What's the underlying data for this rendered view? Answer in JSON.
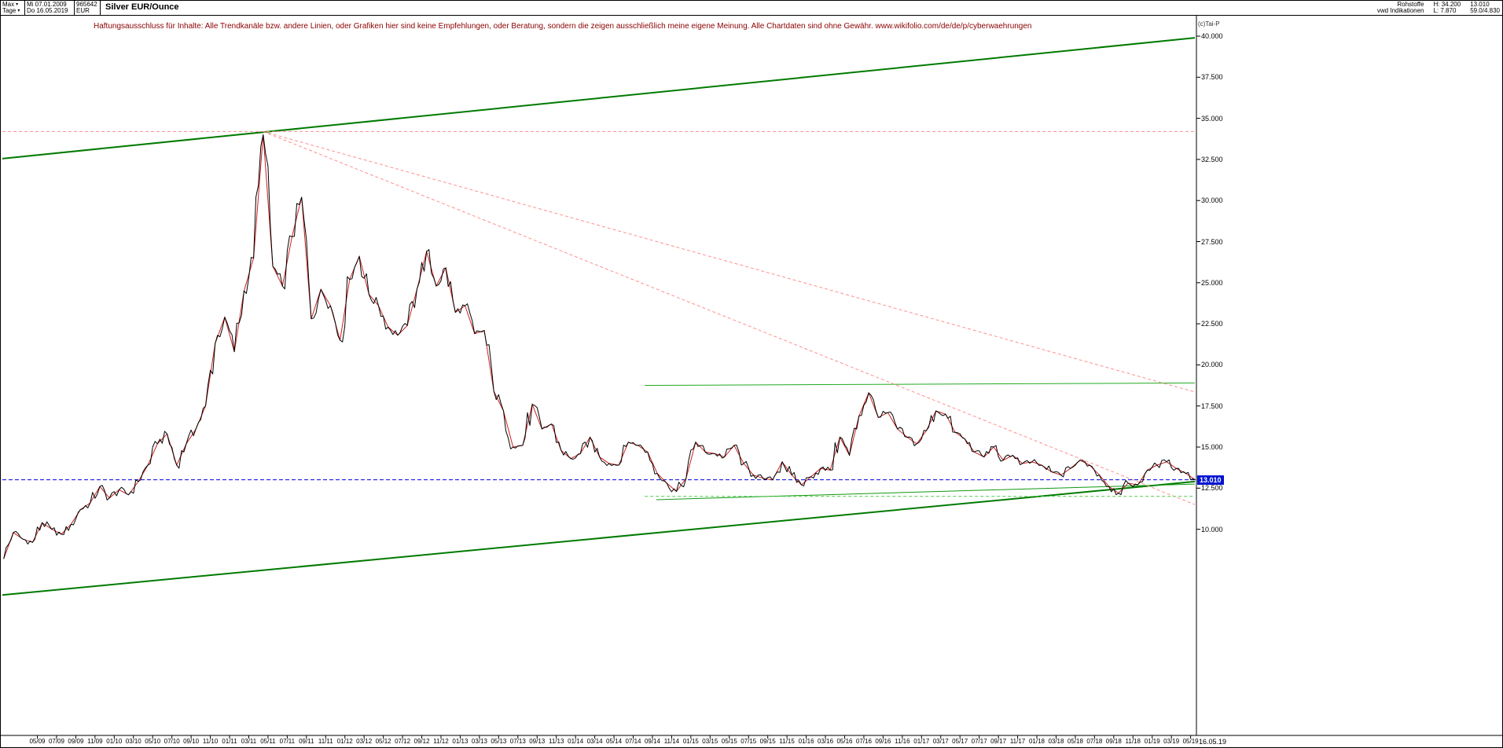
{
  "header": {
    "range_selector": "Max",
    "period_selector": "Tage",
    "start_date": "Mi 07.01.2009",
    "end_date": "Do 16.05.2019",
    "instrument_id": "965642",
    "currency": "EUR",
    "title": "Silver EUR/Ounce",
    "category": "Rohstoffe",
    "subcategory": "vwd Indikationen",
    "high_label": "H: 34.200",
    "low_label": "L: 7.870",
    "last_price": "13.010",
    "range_info": "59.0/4.830",
    "copyright": "(c)Tai-P"
  },
  "disclaimer": "Haftungsausschluss für Inhalte: Alle Trendkanäle bzw. andere Linien, oder Grafiken hier sind keine Empfehlungen, oder Beratung, sondern die zeigen ausschließlich meine eigene Meinung. Alle Chartdaten sind ohne Gewähr.  www.wikifolio.com/de/de/p/cyberwaehrungen",
  "chart_data": {
    "type": "line",
    "title": "Silver EUR/Ounce",
    "currency": "EUR",
    "x_range": [
      "2009-01-07",
      "2019-05-16"
    ],
    "ylim": [
      -2.5,
      40
    ],
    "grid": false,
    "high": 34.2,
    "low": 7.87,
    "current_price": 13.01,
    "price_tag": "13.010",
    "x_end_label": "16.05.19",
    "line_color": "#000000",
    "overlay_color": "#cc2020",
    "y_ticks": [
      {
        "label": "40.000",
        "value": 40.0
      },
      {
        "label": "37.500",
        "value": 37.5
      },
      {
        "label": "35.000",
        "value": 35.0
      },
      {
        "label": "32.500",
        "value": 32.5
      },
      {
        "label": "30.000",
        "value": 30.0
      },
      {
        "label": "27.500",
        "value": 27.5
      },
      {
        "label": "25.000",
        "value": 25.0
      },
      {
        "label": "22.500",
        "value": 22.5
      },
      {
        "label": "20.000",
        "value": 20.0
      },
      {
        "label": "17.500",
        "value": 17.5
      },
      {
        "label": "15.000",
        "value": 15.0
      },
      {
        "label": "12.500",
        "value": 12.5
      },
      {
        "label": "10.000",
        "value": 10.0
      }
    ],
    "x_ticks": [
      "05/09",
      "07/09",
      "09/09",
      "11/09",
      "01/10",
      "03/10",
      "05/10",
      "07/10",
      "09/10",
      "11/10",
      "01/11",
      "03/11",
      "05/11",
      "07/11",
      "09/11",
      "11/11",
      "01/12",
      "03/12",
      "05/12",
      "07/12",
      "09/12",
      "11/12",
      "01/13",
      "03/13",
      "05/13",
      "07/13",
      "09/13",
      "11/13",
      "01/14",
      "03/14",
      "05/14",
      "07/14",
      "09/14",
      "11/14",
      "01/15",
      "03/15",
      "05/15",
      "07/15",
      "09/15",
      "11/15",
      "01/16",
      "03/16",
      "05/16",
      "07/16",
      "09/16",
      "11/16",
      "01/17",
      "03/17",
      "05/17",
      "07/17",
      "09/17",
      "11/17",
      "01/18",
      "03/18",
      "05/18",
      "07/18",
      "09/18",
      "11/18",
      "01/19",
      "03/19",
      "05/19"
    ],
    "series": {
      "name": "Silver EUR close",
      "start": "2009-01",
      "interval": "monthly",
      "closes": [
        8.2,
        9.8,
        9.4,
        9.2,
        10.4,
        10.0,
        9.7,
        10.3,
        11.2,
        11.6,
        12.6,
        11.9,
        12.4,
        12.1,
        12.9,
        13.9,
        15.2,
        15.8,
        13.9,
        15.2,
        16.1,
        17.5,
        21.3,
        22.9,
        20.8,
        24.5,
        26.5,
        34.0,
        26.0,
        24.8,
        27.8,
        30.2,
        22.8,
        24.6,
        23.6,
        21.5,
        25.2,
        26.6,
        24.3,
        23.6,
        22.3,
        21.8,
        22.4,
        24.6,
        26.9,
        24.8,
        25.9,
        23.2,
        23.6,
        21.9,
        22.1,
        18.4,
        17.2,
        15.0,
        15.1,
        17.6,
        16.1,
        16.4,
        14.8,
        14.3,
        14.6,
        15.6,
        14.4,
        14.0,
        13.9,
        15.3,
        15.1,
        14.7,
        13.4,
        12.8,
        12.3,
        13.1,
        15.3,
        14.7,
        14.6,
        14.4,
        15.1,
        14.0,
        13.3,
        13.1,
        13.0,
        14.1,
        13.3,
        12.7,
        13.2,
        13.7,
        13.6,
        15.6,
        14.5,
        16.9,
        18.3,
        16.8,
        17.1,
        16.1,
        15.6,
        15.2,
        16.0,
        17.2,
        17.0,
        15.9,
        15.5,
        14.7,
        14.4,
        15.0,
        14.2,
        14.5,
        14.0,
        14.1,
        13.9,
        13.5,
        13.3,
        13.7,
        14.2,
        13.9,
        13.3,
        12.6,
        12.2,
        12.8,
        12.7,
        13.6,
        13.9,
        14.1,
        13.7,
        13.4,
        13.0
      ]
    },
    "trendlines": [
      {
        "name": "upper-channel",
        "color": "#007a00",
        "width": 2,
        "dash": null,
        "x1": 2009.03,
        "v1": 32.55,
        "x2": 2019.37,
        "v2": 39.9
      },
      {
        "name": "lower-channel",
        "color": "#007a00",
        "width": 2,
        "dash": null,
        "x1": 2009.03,
        "v1": 6.0,
        "x2": 2019.37,
        "v2": 12.9
      },
      {
        "name": "support-2014",
        "color": "#119911",
        "width": 1,
        "dash": null,
        "x1": 2014.7,
        "v1": 11.8,
        "x2": 2019.37,
        "v2": 12.75
      },
      {
        "name": "resistance-2016",
        "color": "#22aa22",
        "width": 1,
        "dash": null,
        "x1": 2014.6,
        "v1": 18.75,
        "x2": 2019.37,
        "v2": 18.9
      },
      {
        "name": "high-horizontal",
        "color": "#ff8f8f",
        "width": 1,
        "dash": "4 3",
        "x1": 2009.03,
        "v1": 34.2,
        "x2": 2019.37,
        "v2": 34.2
      },
      {
        "name": "downtrend-shallow",
        "color": "#ff8f8f",
        "width": 1,
        "dash": "4 3",
        "x1": 2011.29,
        "v1": 34.2,
        "x2": 2019.37,
        "v2": 18.35
      },
      {
        "name": "downtrend-steep",
        "color": "#ff8f8f",
        "width": 1,
        "dash": "4 3",
        "x1": 2011.29,
        "v1": 34.2,
        "x2": 2019.37,
        "v2": 11.5
      },
      {
        "name": "current-price-line",
        "color": "#0000e0",
        "width": 1,
        "dash": "5 3",
        "x1": 2009.03,
        "v1": 13.01,
        "x2": 2019.37,
        "v2": 13.01
      },
      {
        "name": "support-dashed-green",
        "color": "#4ecc4e",
        "width": 1,
        "dash": "4 3",
        "x1": 2014.6,
        "v1": 12.0,
        "x2": 2019.37,
        "v2": 12.0
      }
    ]
  }
}
